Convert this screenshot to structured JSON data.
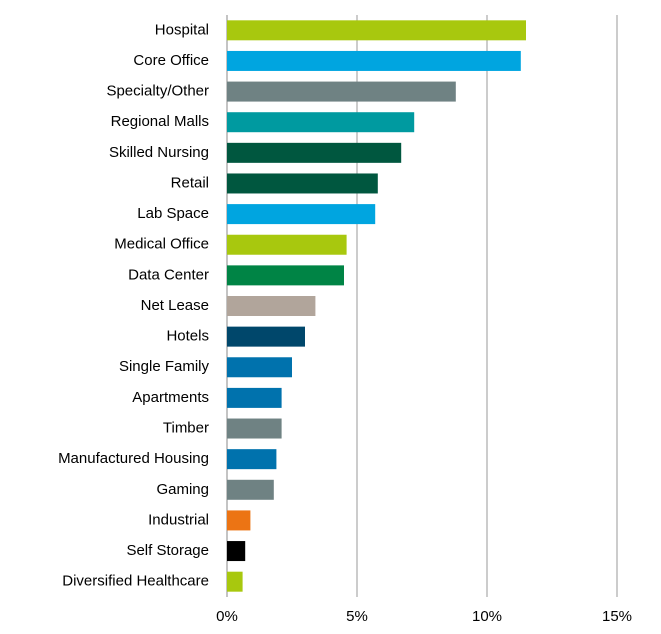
{
  "chart_data": {
    "type": "barh",
    "categories": [
      "Hospital",
      "Core Office",
      "Specialty/Other",
      "Regional Malls",
      "Skilled Nursing",
      "Retail",
      "Lab Space",
      "Medical Office",
      "Data Center",
      "Net Lease",
      "Hotels",
      "Single Family",
      "Apartments",
      "Timber",
      "Manufactured Housing",
      "Gaming",
      "Industrial",
      "Self Storage",
      "Diversified Healthcare"
    ],
    "values": [
      11.5,
      11.3,
      8.8,
      7.2,
      6.7,
      5.8,
      5.7,
      4.6,
      4.5,
      3.4,
      3.0,
      2.5,
      2.1,
      2.1,
      1.9,
      1.8,
      0.9,
      0.7,
      0.6
    ],
    "colors": [
      "#a8c80e",
      "#00a5e0",
      "#6f8283",
      "#009aa0",
      "#00573f",
      "#00573f",
      "#00a5e0",
      "#a8c80e",
      "#008445",
      "#b1a59b",
      "#00476b",
      "#0072ad",
      "#0072ad",
      "#6f8283",
      "#0072ad",
      "#6f8283",
      "#ec7414",
      "#000000",
      "#a8c80e"
    ],
    "xlim": [
      0,
      15
    ],
    "xticks": [
      {
        "value": 0,
        "label": "0%"
      },
      {
        "value": 5,
        "label": "5%"
      },
      {
        "value": 10,
        "label": "10%"
      },
      {
        "value": 15,
        "label": "15%"
      }
    ],
    "grid": true
  }
}
